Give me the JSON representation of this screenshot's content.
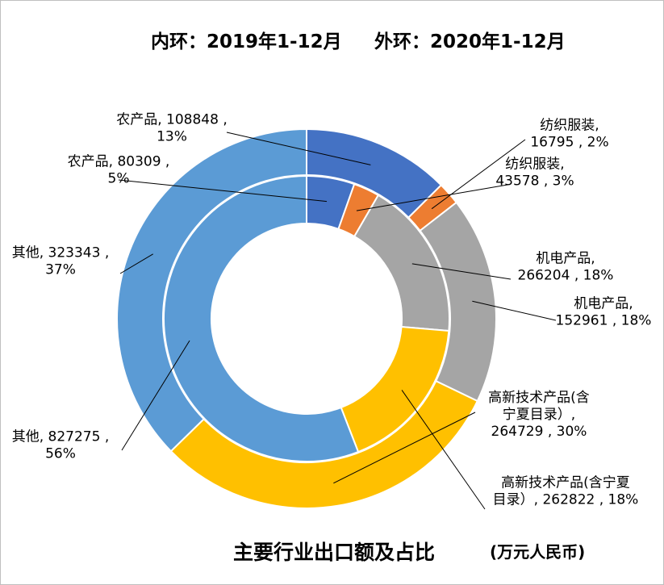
{
  "header": {
    "inner_ring_label": "内环：2019年1-12月",
    "outer_ring_label": "外环：2020年1-12月"
  },
  "footer": {
    "title": "主要行业出口额及占比",
    "unit": "(万元人民币)"
  },
  "chart_data": {
    "type": "donut",
    "title": "主要行业出口额及占比",
    "unit": "(万元人民币)",
    "rings": [
      {
        "name": "内环：2019年1-12月",
        "position": "inner",
        "slices": [
          {
            "category": "农产品",
            "value": 80309,
            "percent": "5%",
            "color": "#4472C4"
          },
          {
            "category": "纺织服装",
            "value": 43578,
            "percent": "3%",
            "color": "#ED7D31"
          },
          {
            "category": "机电产品",
            "value": 266204,
            "percent": "18%",
            "color": "#A5A5A5"
          },
          {
            "category": "高新技术产品(含宁夏目录)",
            "value": 262822,
            "percent": "18%",
            "color": "#FFC000"
          },
          {
            "category": "其他",
            "value": 827275,
            "percent": "56%",
            "color": "#5B9BD5"
          }
        ]
      },
      {
        "name": "外环：2020年1-12月",
        "position": "outer",
        "slices": [
          {
            "category": "农产品",
            "value": 108848,
            "percent": "13%",
            "color": "#4472C4"
          },
          {
            "category": "纺织服装",
            "value": 16795,
            "percent": "2%",
            "color": "#ED7D31"
          },
          {
            "category": "机电产品",
            "value": 152961,
            "percent": "18%",
            "color": "#A5A5A5"
          },
          {
            "category": "高新技术产品(含宁夏目录)",
            "value": 264729,
            "percent": "30%",
            "color": "#FFC000"
          },
          {
            "category": "其他",
            "value": 323343,
            "percent": "37%",
            "color": "#5B9BD5"
          }
        ]
      }
    ],
    "data_labels": {
      "inner": [
        {
          "lines": [
            "农产品, 80309 ,",
            "5%"
          ]
        },
        {
          "lines": [
            "纺织服装,",
            "43578 , 3%"
          ]
        },
        {
          "lines": [
            "机电产品,",
            "266204 , 18%"
          ]
        },
        {
          "lines": [
            "高新技术产品(含宁夏",
            "目录）, 262822 , 18%"
          ]
        },
        {
          "lines": [
            "其他, 827275 ,",
            "56%"
          ]
        }
      ],
      "outer": [
        {
          "lines": [
            "农产品, 108848 ,",
            "13%"
          ]
        },
        {
          "lines": [
            "纺织服装,",
            "16795 , 2%"
          ]
        },
        {
          "lines": [
            "机电产品,",
            "152961 , 18%"
          ]
        },
        {
          "lines": [
            "高新技术产品(含",
            "宁夏目录）,",
            "264729 , 30%"
          ]
        },
        {
          "lines": [
            "其他, 323343 ,",
            "37%"
          ]
        }
      ]
    },
    "legend": "none"
  }
}
